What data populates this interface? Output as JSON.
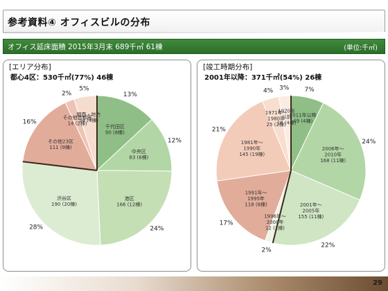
{
  "title": "参考資料④ オフィスビルの分布",
  "summary_bar": {
    "left": "オフィス延床面積 2015年3月末 689千㎡ 61棟",
    "right": "(単位:千㎡)"
  },
  "footer": {
    "page_number": "29"
  },
  "chart_data": [
    {
      "type": "pie",
      "heading": "[エリア分布]",
      "subtitle": "都心4区：530千㎡(77%) 46棟",
      "slices": [
        {
          "label_lines": [
            "千代田区",
            "90 (8棟)"
          ],
          "value": 90,
          "percent": "13%",
          "color": "#8fbf86"
        },
        {
          "label_lines": [
            "中央区",
            "83 (6棟)"
          ],
          "value": 83,
          "percent": "12%",
          "color": "#b3d6a6"
        },
        {
          "label_lines": [
            "港区",
            "166 (12棟)"
          ],
          "value": 166,
          "percent": "24%",
          "color": "#c4dfb4"
        },
        {
          "label_lines": [
            "渋谷区",
            "190 (20棟)"
          ],
          "value": 190,
          "percent": "28%",
          "color": "#dcecd3"
        },
        {
          "label_lines": [
            "その他23区",
            "111 (9棟)"
          ],
          "value": 111,
          "percent": "16%",
          "color": "#e2ac9b"
        },
        {
          "label_lines": [
            "その他首都圏",
            "14 (2棟)"
          ],
          "value": 14,
          "percent": "2%",
          "color": "#efc3b4"
        },
        {
          "label_lines": [
            "関西・地方",
            "34 (4棟)"
          ],
          "value": 34,
          "percent": "5%",
          "color": "#f6dccf"
        }
      ]
    },
    {
      "type": "pie",
      "heading": "[竣工時期分布]",
      "subtitle": "2001年以降：371千㎡(54%) 26棟",
      "slices": [
        {
          "label_lines": [
            "2011年以降",
            "49 (4棟)"
          ],
          "value": 49,
          "percent": "7%",
          "color": "#8fbf86"
        },
        {
          "label_lines": [
            "2006年～",
            "2010年",
            "168 (11棟)"
          ],
          "value": 168,
          "percent": "24%",
          "color": "#b3d6a6"
        },
        {
          "label_lines": [
            "2001年～",
            "2005年",
            "155 (11棟)"
          ],
          "value": 155,
          "percent": "22%",
          "color": "#cfe5c3"
        },
        {
          "label_lines": [
            "1996年～",
            "2000年",
            "12 (2棟)"
          ],
          "value": 12,
          "percent": "2%",
          "color": "#eef5e8"
        },
        {
          "label_lines": [
            "1991年～",
            "1995年",
            "118 (8棟)"
          ],
          "value": 118,
          "percent": "17%",
          "color": "#e2ac9b"
        },
        {
          "label_lines": [
            "1981年～",
            "1990年",
            "145 (19棟)"
          ],
          "value": 145,
          "percent": "21%",
          "color": "#f3ccb9"
        },
        {
          "label_lines": [
            "1971年～",
            "1980年",
            "25 (2棟)"
          ],
          "value": 25,
          "percent": "4%",
          "color": "#f7dece"
        },
        {
          "label_lines": [
            "1970年",
            "以前",
            "18 (4棟)"
          ],
          "value": 18,
          "percent": "3%",
          "color": "#fbece3"
        }
      ]
    }
  ]
}
